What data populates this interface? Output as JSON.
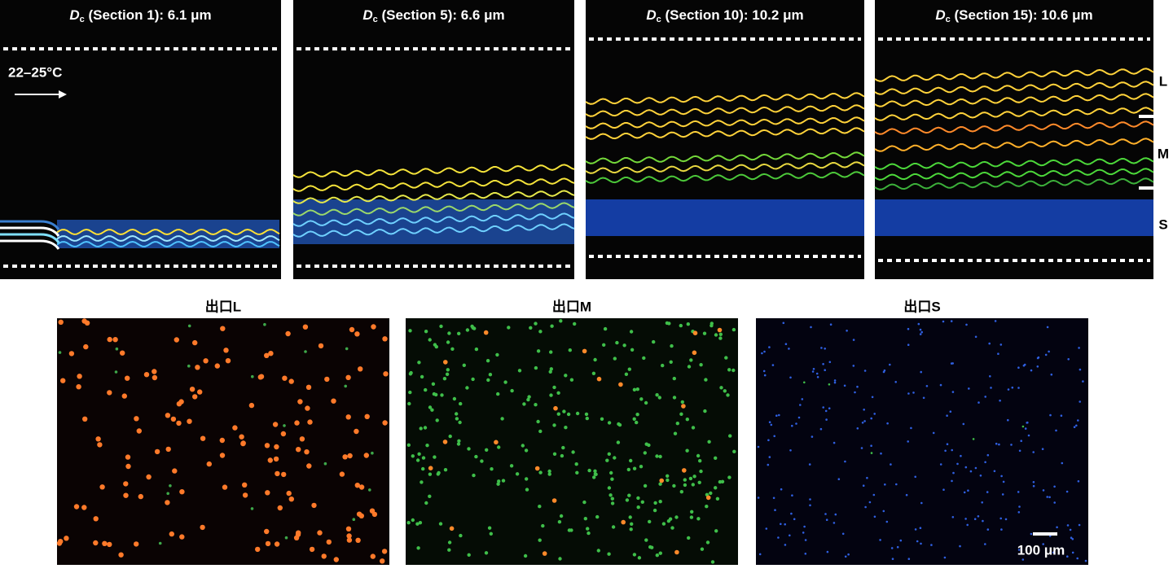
{
  "top_panels": [
    {
      "symbol": "D",
      "subscript": "c",
      "text": " (Section 1): 6.1 μm"
    },
    {
      "symbol": "D",
      "subscript": "c",
      "text": " (Section 5): 6.6 μm"
    },
    {
      "symbol": "D",
      "subscript": "c",
      "text": " (Section 10): 10.2 μm"
    },
    {
      "symbol": "D",
      "subscript": "c",
      "text": " (Section 15): 10.6 μm"
    }
  ],
  "temperature": "22–25°C",
  "outlet_tags": [
    "L",
    "M",
    "S"
  ],
  "bottom_panels": [
    "出口L",
    "出口M",
    "出口S"
  ],
  "scale_bar": "100 μm"
}
